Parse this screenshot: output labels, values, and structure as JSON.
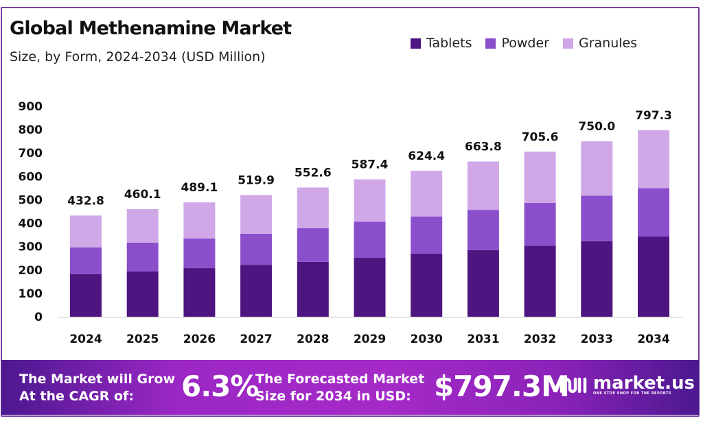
{
  "title": "Global Methenamine Market",
  "subtitle": "Size, by Form, 2024-2034 (USD Million)",
  "colors": {
    "Tablets": "#4e1580",
    "Powder": "#8b4fcc",
    "Granules": "#d0a8e8",
    "frame": "#7a3fa6"
  },
  "chart_data": {
    "type": "bar",
    "stacked": true,
    "categories": [
      "2024",
      "2025",
      "2026",
      "2027",
      "2028",
      "2029",
      "2030",
      "2031",
      "2032",
      "2033",
      "2034"
    ],
    "series": [
      {
        "name": "Tablets",
        "values": [
          182,
          194,
          208,
          222,
          235,
          252,
          270,
          285,
          304,
          323,
          343
        ]
      },
      {
        "name": "Powder",
        "values": [
          114,
          123,
          127,
          133,
          144,
          154,
          159,
          172,
          183,
          195,
          207
        ]
      },
      {
        "name": "Granules",
        "values": [
          136.8,
          143.1,
          154.1,
          164.9,
          173.6,
          181.4,
          195.4,
          206.8,
          218.6,
          232.0,
          247.3
        ]
      }
    ],
    "totals": [
      "432.8",
      "460.1",
      "489.1",
      "519.9",
      "552.6",
      "587.4",
      "624.4",
      "663.8",
      "705.6",
      "750.0",
      "797.3"
    ],
    "yticks": [
      "0",
      "100",
      "200",
      "300",
      "400",
      "500",
      "600",
      "700",
      "800",
      "900"
    ],
    "ylim": [
      0,
      900
    ],
    "grid": false,
    "legend": "top-right"
  },
  "banner": {
    "cagr_label_1": "The Market will Grow",
    "cagr_label_2": "At the CAGR of:",
    "cagr_value": "6.3%",
    "forecast_label_1": "The Forecasted Market",
    "forecast_label_2": "Size for 2034 in USD:",
    "forecast_value": "$797.3M",
    "logo_text": "market.us",
    "logo_tagline": "ONE STOP SHOP FOR THE REPORTS"
  }
}
